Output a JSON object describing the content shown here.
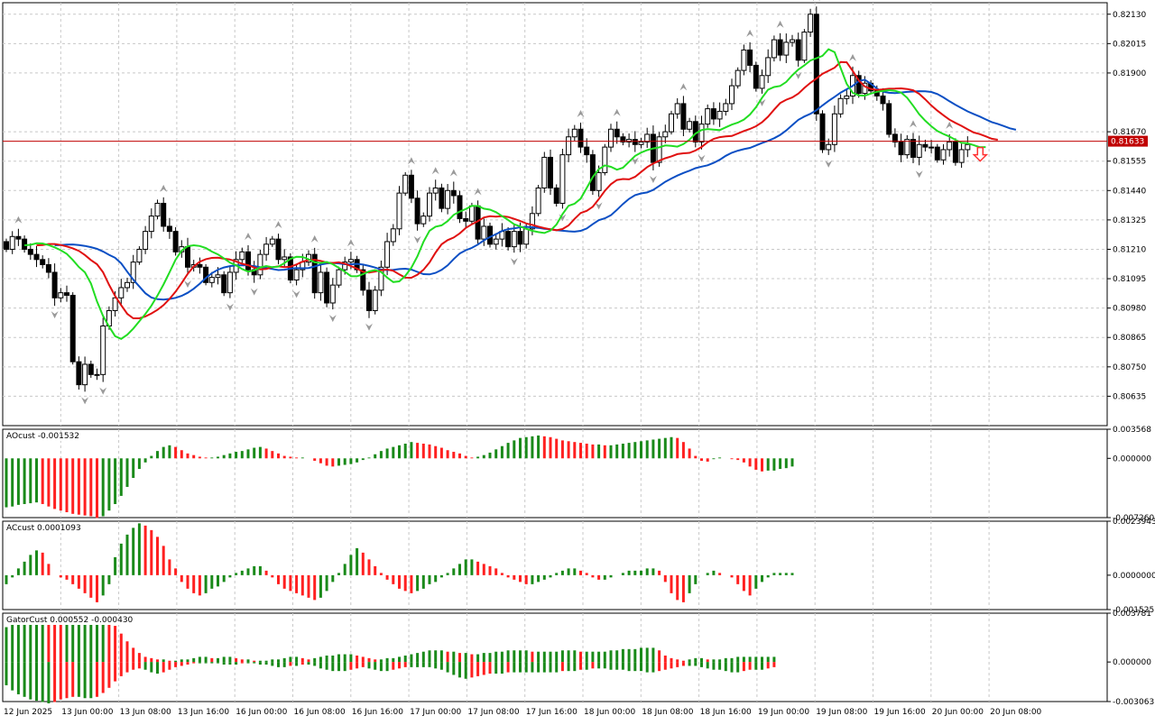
{
  "panels": {
    "ao_label": "AOcust -0.001532",
    "ac_label": "ACcust 0.0001093",
    "gator_label": "GatorCust 0.000552 -0.000430"
  },
  "price_badge": "0.81633",
  "colors": {
    "bull": "#1a8a1a",
    "bear": "#ff2020",
    "jaw": "#0b4fc4",
    "teeth": "#e01010",
    "lips": "#22dd22",
    "grid": "#c8c8c8",
    "price_line": "#c00000",
    "fractal": "#9a9a9a",
    "arrow": "#ff3030"
  },
  "chart_data": [
    {
      "name": "price",
      "type": "candlestick",
      "y_ticks": [
        "0.82130",
        "0.82015",
        "0.81900",
        "0.81670",
        "0.81555",
        "0.81440",
        "0.81325",
        "0.81210",
        "0.81095",
        "0.80980",
        "0.80865",
        "0.80750",
        "0.80635"
      ],
      "y_range": [
        0.8052,
        0.82175
      ],
      "current_price": 0.81633,
      "time_ticks": [
        "12 Jun 2025",
        "13 Jun 00:00",
        "13 Jun 08:00",
        "13 Jun 16:00",
        "16 Jun 00:00",
        "16 Jun 08:00",
        "16 Jun 16:00",
        "17 Jun 00:00",
        "17 Jun 08:00",
        "17 Jun 16:00",
        "18 Jun 00:00",
        "18 Jun 08:00",
        "18 Jun 16:00",
        "19 Jun 00:00",
        "19 Jun 08:00",
        "19 Jun 16:00",
        "20 Jun 00:00",
        "20 Jun 08:00"
      ],
      "close": [
        0.8121,
        0.8126,
        0.8125,
        0.8121,
        0.8119,
        0.8117,
        0.8115,
        0.8112,
        0.8102,
        0.8104,
        0.8103,
        0.8077,
        0.8068,
        0.8076,
        0.8072,
        0.8072,
        0.8091,
        0.8097,
        0.8102,
        0.8106,
        0.8108,
        0.8116,
        0.8121,
        0.8128,
        0.8134,
        0.8139,
        0.813,
        0.8128,
        0.812,
        0.8122,
        0.8114,
        0.8115,
        0.8114,
        0.8108,
        0.811,
        0.8111,
        0.8104,
        0.8112,
        0.8117,
        0.812,
        0.8113,
        0.8111,
        0.8119,
        0.8123,
        0.8125,
        0.8117,
        0.8118,
        0.8109,
        0.8113,
        0.8116,
        0.8119,
        0.8104,
        0.8112,
        0.81,
        0.8107,
        0.8113,
        0.8116,
        0.8117,
        0.8113,
        0.8105,
        0.8097,
        0.8105,
        0.8114,
        0.8124,
        0.8129,
        0.8143,
        0.815,
        0.8141,
        0.8131,
        0.8134,
        0.8143,
        0.8145,
        0.8137,
        0.8144,
        0.8142,
        0.8133,
        0.8132,
        0.8138,
        0.8125,
        0.813,
        0.8123,
        0.8125,
        0.8128,
        0.8122,
        0.8128,
        0.8123,
        0.8129,
        0.8135,
        0.8145,
        0.8157,
        0.8145,
        0.8139,
        0.8158,
        0.8165,
        0.8168,
        0.8161,
        0.8158,
        0.8144,
        0.8151,
        0.8161,
        0.8168,
        0.8165,
        0.8163,
        0.8164,
        0.8162,
        0.8163,
        0.8166,
        0.8155,
        0.8165,
        0.8167,
        0.8174,
        0.8178,
        0.8168,
        0.8171,
        0.8163,
        0.817,
        0.8176,
        0.8172,
        0.8175,
        0.8178,
        0.8185,
        0.8191,
        0.8199,
        0.8193,
        0.8184,
        0.8189,
        0.8196,
        0.8203,
        0.8197,
        0.8202,
        0.8203,
        0.8195,
        0.8206,
        0.8213,
        0.8174,
        0.816,
        0.8162,
        0.8174,
        0.818,
        0.8181,
        0.8189,
        0.8182,
        0.8186,
        0.8183,
        0.8181,
        0.8178,
        0.8166,
        0.8163,
        0.8158,
        0.8164,
        0.8157,
        0.8162,
        0.8161,
        0.8161,
        0.8156,
        0.816,
        0.8163,
        0.8155,
        0.816,
        0.8162
      ],
      "jaw_range": [
        0.8122,
        0.816
      ],
      "teeth_range": [
        0.8112,
        0.8172
      ],
      "lips_range": [
        0.8104,
        0.8174
      ]
    },
    {
      "name": "AOcust",
      "type": "histogram",
      "y_ticks": [
        "0.003568",
        "0.000000",
        "-0.007260"
      ],
      "y_range": [
        -0.00726,
        0.003568
      ],
      "values": [
        -0.006,
        -0.0059,
        -0.0057,
        -0.0056,
        -0.0055,
        -0.0054,
        -0.0056,
        -0.0059,
        -0.0062,
        -0.0064,
        -0.0066,
        -0.0068,
        -0.0069,
        -0.007,
        -0.0071,
        -0.0073,
        -0.0071,
        -0.0064,
        -0.0056,
        -0.0046,
        -0.0035,
        -0.0024,
        -0.0013,
        -0.0005,
        0.0003,
        0.0009,
        0.0014,
        0.0016,
        0.0014,
        0.001,
        0.0006,
        0.0004,
        0.0002,
        0.0001,
        0.0001,
        0.0002,
        0.0004,
        0.0006,
        0.0008,
        0.0009,
        0.0011,
        0.0013,
        0.0014,
        0.0012,
        0.0009,
        0.0006,
        0.0003,
        0.0002,
        0.0001,
        0.0001,
        0.0,
        -0.0003,
        -0.0006,
        -0.0009,
        -0.001,
        -0.0009,
        -0.0008,
        -0.0007,
        -0.0005,
        -0.0002,
        0.0001,
        0.0005,
        0.0009,
        0.0012,
        0.0014,
        0.0016,
        0.0018,
        0.002,
        0.0019,
        0.0018,
        0.0017,
        0.0015,
        0.0013,
        0.001,
        0.0008,
        0.0006,
        0.0003,
        0.0001,
        0.0002,
        0.0004,
        0.0007,
        0.0011,
        0.0015,
        0.0019,
        0.0022,
        0.0025,
        0.0026,
        0.0027,
        0.0028,
        0.0027,
        0.0026,
        0.0024,
        0.0022,
        0.0021,
        0.002,
        0.0019,
        0.0018,
        0.0017,
        0.0017,
        0.0016,
        0.0016,
        0.0017,
        0.0018,
        0.0019,
        0.002,
        0.0021,
        0.0022,
        0.0023,
        0.0024,
        0.0025,
        0.0026,
        0.0025,
        0.002,
        0.0012,
        0.0003,
        -0.0003,
        -0.0004,
        -0.0001,
        0.0001,
        0.0,
        -0.0001,
        -0.0002,
        -0.0005,
        -0.001,
        -0.0014,
        -0.0016,
        -0.0015,
        -0.0015,
        -0.0013,
        -0.0012,
        -0.001
      ],
      "ao_start_index": 0
    },
    {
      "name": "ACcust",
      "type": "histogram",
      "y_ticks": [
        "0.0023943",
        "0.0000000",
        "-0.0015251"
      ],
      "y_range": [
        -0.0015251,
        0.0023943
      ],
      "values": [
        -0.0004,
        -0.0001,
        0.0003,
        0.0006,
        0.0009,
        0.0011,
        0.001,
        0.0005,
        0.0,
        -0.0001,
        -0.0002,
        -0.0004,
        -0.0006,
        -0.0008,
        -0.001,
        -0.0012,
        -0.0009,
        -0.0004,
        0.0008,
        0.0014,
        0.0018,
        0.0021,
        0.0023,
        0.0022,
        0.002,
        0.0017,
        0.0013,
        0.0007,
        0.0003,
        -0.0003,
        -0.0006,
        -0.0008,
        -0.0009,
        -0.0008,
        -0.0006,
        -0.0005,
        -0.0003,
        -0.0001,
        0.0001,
        0.0002,
        0.0003,
        0.0004,
        0.0004,
        0.0002,
        -0.0001,
        -0.0004,
        -0.0006,
        -0.0007,
        -0.0008,
        -0.0009,
        -0.001,
        -0.0011,
        -0.001,
        -0.0007,
        -0.0003,
        0.0001,
        0.0005,
        0.0009,
        0.0012,
        0.001,
        0.0007,
        0.0004,
        0.0001,
        -0.0002,
        -0.0004,
        -0.0006,
        -0.0007,
        -0.0008,
        -0.0007,
        -0.0006,
        -0.0004,
        -0.0003,
        -0.0001,
        0.0001,
        0.0003,
        0.0005,
        0.0007,
        0.0007,
        0.0006,
        0.0005,
        0.0004,
        0.0003,
        0.0001,
        -0.0001,
        -0.0002,
        -0.0003,
        -0.0004,
        -0.0004,
        -0.0003,
        -0.0002,
        -0.0001,
        0.0001,
        0.0002,
        0.0003,
        0.0003,
        0.0002,
        0.0001,
        -0.0001,
        -0.0002,
        -0.0002,
        -0.0001,
        0.0,
        0.0001,
        0.0002,
        0.0002,
        0.0002,
        0.0003,
        0.0003,
        0.0002,
        -0.0003,
        -0.0008,
        -0.0011,
        -0.0012,
        -0.0008,
        -0.0004,
        0.0,
        0.0001,
        0.0002,
        0.0001,
        0.0,
        -0.0001,
        -0.0004,
        -0.0007,
        -0.0009,
        -0.0006,
        -0.0003,
        -0.0001,
        0.0001,
        0.0001,
        0.0001,
        0.0001
      ]
    },
    {
      "name": "GatorCust",
      "type": "histogram",
      "y_ticks": [
        "0.003781",
        "0.000000",
        "-0.003063"
      ],
      "y_range": [
        -0.003063,
        0.003781
      ],
      "upper": [
        0.0027,
        0.0029,
        0.0031,
        0.0032,
        0.0033,
        0.0033,
        0.0033,
        0.0032,
        0.003,
        0.0029,
        0.0029,
        0.003,
        0.0031,
        0.0032,
        0.0033,
        0.0034,
        0.0035,
        0.0033,
        0.0028,
        0.0022,
        0.0016,
        0.0011,
        0.0007,
        0.0004,
        0.0003,
        0.0002,
        0.0002,
        0.0001,
        0.0001,
        0.0002,
        0.0002,
        0.0003,
        0.0004,
        0.0004,
        0.0003,
        0.0003,
        0.0004,
        0.0004,
        0.0003,
        0.0002,
        0.0002,
        0.0001,
        0.0001,
        0.0001,
        0.0002,
        0.0002,
        0.0003,
        0.0004,
        0.0004,
        0.0003,
        0.0002,
        0.0003,
        0.0004,
        0.0005,
        0.0005,
        0.0006,
        0.0006,
        0.0006,
        0.0005,
        0.0004,
        0.0003,
        0.0002,
        0.0002,
        0.0003,
        0.0003,
        0.0004,
        0.0005,
        0.0006,
        0.0007,
        0.0008,
        0.0009,
        0.0009,
        0.0009,
        0.0008,
        0.0008,
        0.0007,
        0.0007,
        0.0006,
        0.0006,
        0.0007,
        0.0007,
        0.0008,
        0.0008,
        0.0009,
        0.0009,
        0.0009,
        0.0009,
        0.0008,
        0.0008,
        0.0008,
        0.0008,
        0.0008,
        0.0009,
        0.0009,
        0.0009,
        0.0008,
        0.0008,
        0.0008,
        0.0008,
        0.0008,
        0.0009,
        0.0009,
        0.001,
        0.001,
        0.001,
        0.0011,
        0.0011,
        0.0011,
        0.0009,
        0.0005,
        0.0003,
        0.0002,
        0.0001,
        0.0002,
        0.0003,
        0.0003,
        0.0002,
        0.0002,
        0.0002,
        0.0003,
        0.0003,
        0.0004,
        0.0004,
        0.0004,
        0.0004,
        0.0004,
        0.0004,
        0.0004
      ],
      "lower": [
        -0.0018,
        -0.0022,
        -0.0025,
        -0.0027,
        -0.0029,
        -0.003,
        -0.0031,
        -0.0032,
        -0.0031,
        -0.0029,
        -0.0028,
        -0.0027,
        -0.0027,
        -0.0028,
        -0.0028,
        -0.0027,
        -0.0024,
        -0.002,
        -0.0015,
        -0.0011,
        -0.0008,
        -0.0006,
        -0.0005,
        -0.0006,
        -0.0008,
        -0.0009,
        -0.0008,
        -0.0006,
        -0.0004,
        -0.0003,
        -0.0002,
        -0.0001,
        -0.0001,
        -0.0001,
        -0.0001,
        -0.0001,
        -0.0002,
        -0.0002,
        -0.0002,
        -0.0001,
        -0.0001,
        -0.0001,
        -0.0002,
        -0.0002,
        -0.0003,
        -0.0004,
        -0.0004,
        -0.0003,
        -0.0003,
        -0.0002,
        -0.0002,
        -0.0003,
        -0.0005,
        -0.0006,
        -0.0007,
        -0.0007,
        -0.0007,
        -0.0006,
        -0.0005,
        -0.0004,
        -0.0005,
        -0.0006,
        -0.0007,
        -0.0007,
        -0.0006,
        -0.0005,
        -0.0004,
        -0.0004,
        -0.0004,
        -0.0004,
        -0.0004,
        -0.0005,
        -0.0006,
        -0.0008,
        -0.001,
        -0.0012,
        -0.0013,
        -0.0012,
        -0.0011,
        -0.001,
        -0.0009,
        -0.0009,
        -0.0009,
        -0.0008,
        -0.0008,
        -0.0008,
        -0.0008,
        -0.0008,
        -0.0008,
        -0.0008,
        -0.0008,
        -0.0008,
        -0.0007,
        -0.0007,
        -0.0007,
        -0.0006,
        -0.0006,
        -0.0005,
        -0.0005,
        -0.0005,
        -0.0006,
        -0.0006,
        -0.0006,
        -0.0007,
        -0.0007,
        -0.0007,
        -0.0008,
        -0.0008,
        -0.0007,
        -0.0006,
        -0.0005,
        -0.0004,
        -0.0003,
        -0.0003,
        -0.0003,
        -0.0004,
        -0.0005,
        -0.0006,
        -0.0006,
        -0.0007,
        -0.0008,
        -0.0008,
        -0.0007,
        -0.0006,
        -0.0006,
        -0.0006,
        -0.0005,
        -0.0004
      ]
    }
  ]
}
